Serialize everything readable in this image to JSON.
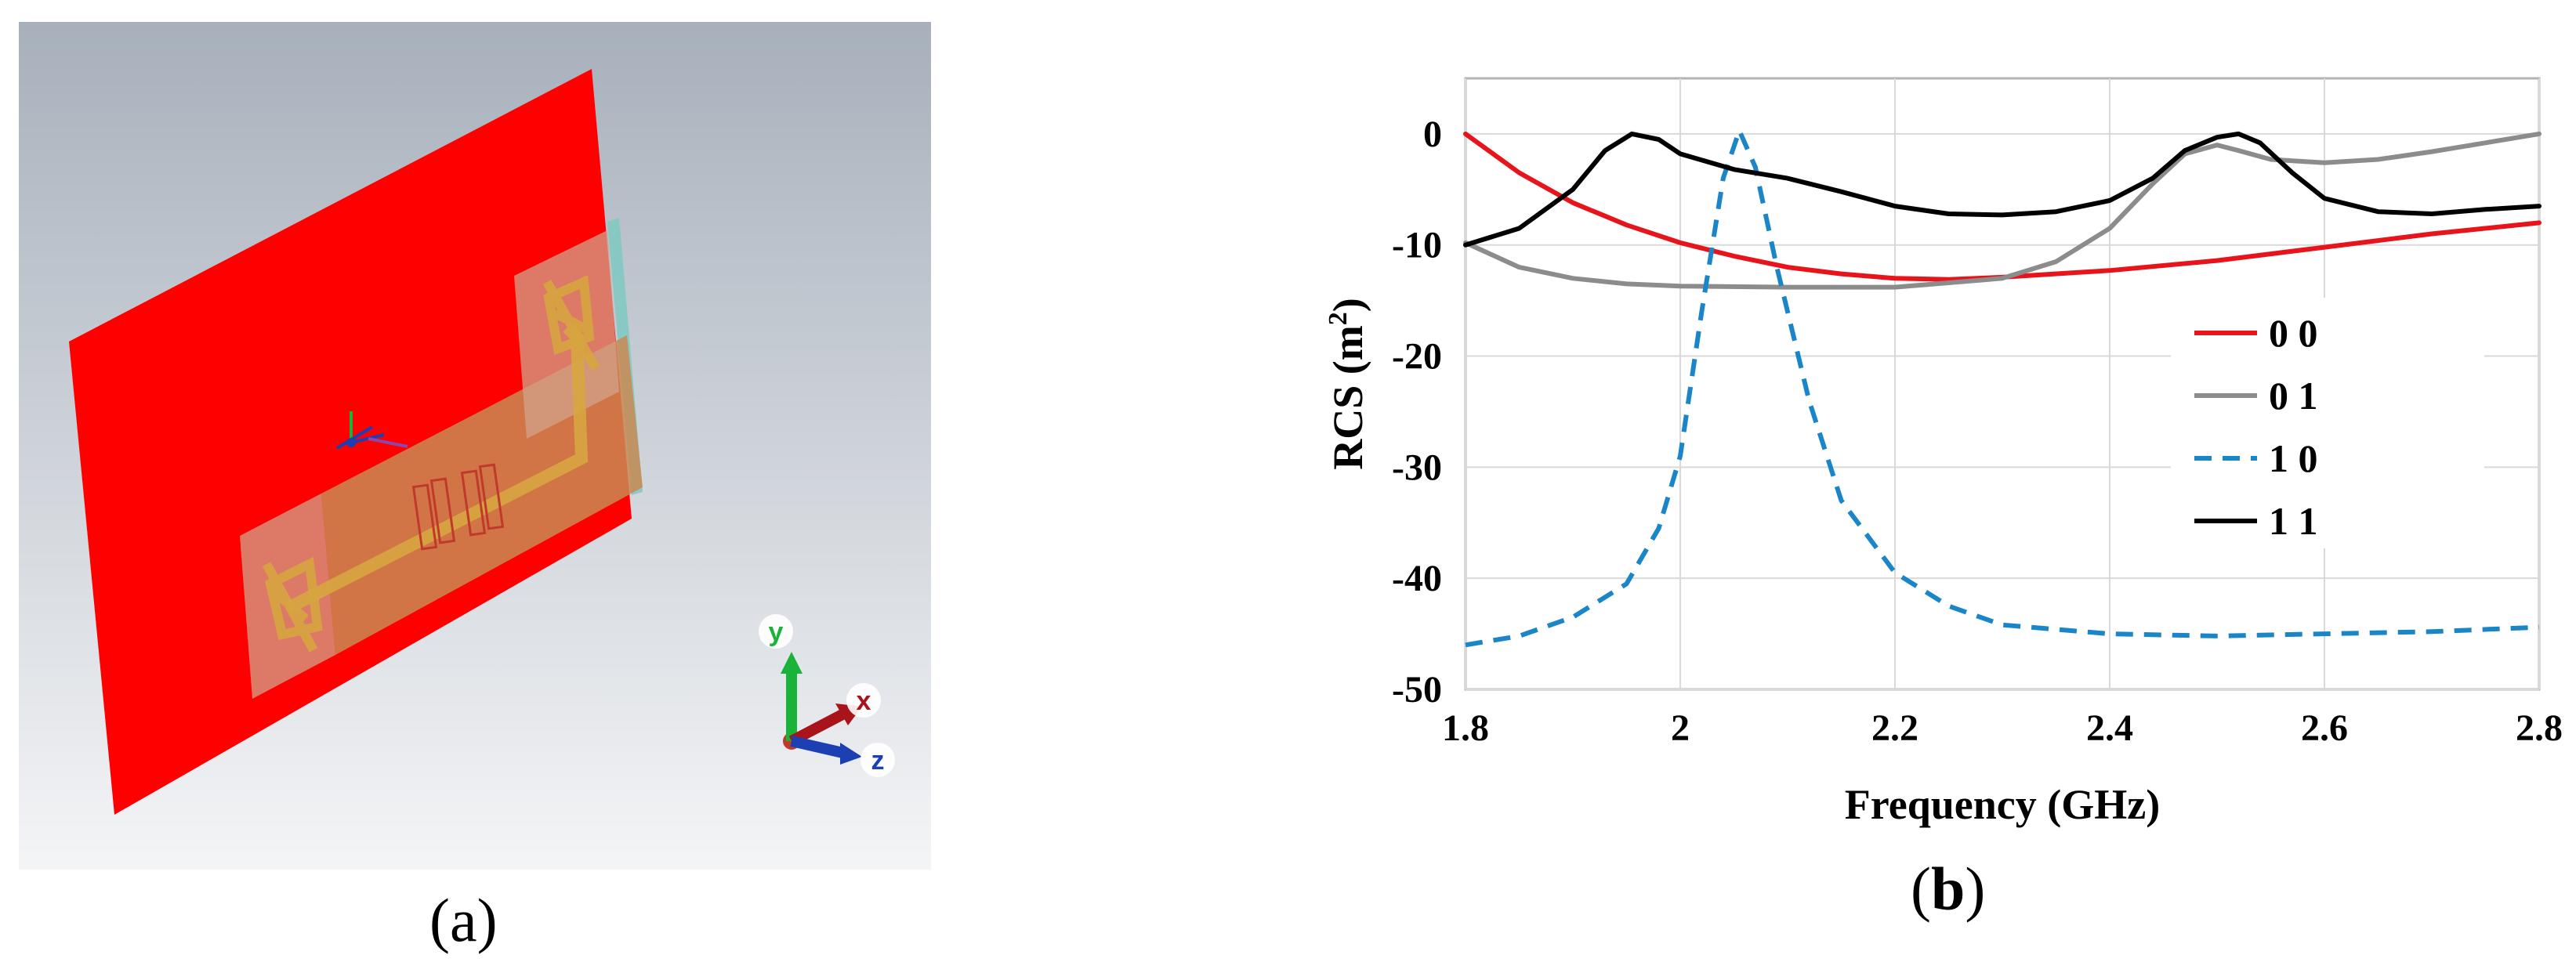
{
  "panel_a": {
    "caption_open": "(",
    "caption_letter": "a",
    "caption_close": ")",
    "axes_labels": {
      "x": "x",
      "y": "y",
      "z": "z"
    },
    "colors": {
      "background_top": "#a7b0bb",
      "background_bottom": "#f4f5f7",
      "ground_plane": "#ff0000",
      "substrate": "#c98a52",
      "feed_line": "#d7a640",
      "edge_strip": "#7fc9c2",
      "x_axis": "#a8141a",
      "y_axis": "#19b339",
      "z_axis": "#1c3fb3"
    }
  },
  "panel_b": {
    "caption_open": "(",
    "caption_letter": "b",
    "caption_close": ")"
  },
  "chart_data": {
    "type": "line",
    "title": "",
    "xlabel": "Frequency (GHz)",
    "ylabel_prefix": "RCS (m",
    "ylabel_sup": "2",
    "ylabel_suffix": ")",
    "xlim": [
      1.8,
      2.8
    ],
    "ylim": [
      -50,
      5
    ],
    "xticks": [
      1.8,
      2.0,
      2.2,
      2.4,
      2.6,
      2.8
    ],
    "xtick_labels": [
      "1.8",
      "2",
      "2.2",
      "2.4",
      "2.6",
      "2.8"
    ],
    "yticks": [
      0,
      -10,
      -20,
      -30,
      -40,
      -50
    ],
    "ytick_labels": [
      "0",
      "-10",
      "-20",
      "-30",
      "-40",
      "-50"
    ],
    "grid": true,
    "legend_position": "right",
    "series": [
      {
        "name": "0 0",
        "color": "#e8141b",
        "dash": "solid",
        "points": [
          [
            1.8,
            0
          ],
          [
            1.85,
            -3.5
          ],
          [
            1.9,
            -6.2
          ],
          [
            1.95,
            -8.2
          ],
          [
            2.0,
            -9.8
          ],
          [
            2.05,
            -11.0
          ],
          [
            2.1,
            -12.0
          ],
          [
            2.15,
            -12.6
          ],
          [
            2.2,
            -13.0
          ],
          [
            2.25,
            -13.1
          ],
          [
            2.3,
            -12.9
          ],
          [
            2.4,
            -12.3
          ],
          [
            2.5,
            -11.4
          ],
          [
            2.6,
            -10.2
          ],
          [
            2.7,
            -9.0
          ],
          [
            2.8,
            -8.0
          ]
        ]
      },
      {
        "name": "0 1",
        "color": "#8c8c8c",
        "dash": "solid",
        "points": [
          [
            1.8,
            -9.8
          ],
          [
            1.85,
            -12.0
          ],
          [
            1.9,
            -13.0
          ],
          [
            1.95,
            -13.5
          ],
          [
            2.0,
            -13.7
          ],
          [
            2.1,
            -13.8
          ],
          [
            2.2,
            -13.8
          ],
          [
            2.3,
            -13.0
          ],
          [
            2.35,
            -11.5
          ],
          [
            2.4,
            -8.5
          ],
          [
            2.44,
            -4.5
          ],
          [
            2.47,
            -1.8
          ],
          [
            2.5,
            -1.0
          ],
          [
            2.52,
            -1.5
          ],
          [
            2.55,
            -2.3
          ],
          [
            2.6,
            -2.6
          ],
          [
            2.65,
            -2.3
          ],
          [
            2.7,
            -1.6
          ],
          [
            2.75,
            -0.8
          ],
          [
            2.8,
            0
          ]
        ]
      },
      {
        "name": "1 0",
        "color": "#1a86c8",
        "dash": "dashed",
        "points": [
          [
            1.8,
            -46
          ],
          [
            1.85,
            -45.2
          ],
          [
            1.9,
            -43.5
          ],
          [
            1.95,
            -40.5
          ],
          [
            1.98,
            -35.5
          ],
          [
            2.0,
            -29.0
          ],
          [
            2.02,
            -16.0
          ],
          [
            2.04,
            -4.0
          ],
          [
            2.055,
            0.3
          ],
          [
            2.07,
            -3.0
          ],
          [
            2.09,
            -12.0
          ],
          [
            2.12,
            -24.0
          ],
          [
            2.15,
            -33.0
          ],
          [
            2.2,
            -39.5
          ],
          [
            2.25,
            -42.5
          ],
          [
            2.3,
            -44.2
          ],
          [
            2.4,
            -45.0
          ],
          [
            2.5,
            -45.2
          ],
          [
            2.6,
            -45.0
          ],
          [
            2.7,
            -44.8
          ],
          [
            2.8,
            -44.4
          ]
        ]
      },
      {
        "name": "1 1",
        "color": "#000000",
        "dash": "solid",
        "points": [
          [
            1.8,
            -10
          ],
          [
            1.85,
            -8.5
          ],
          [
            1.9,
            -5.0
          ],
          [
            1.93,
            -1.5
          ],
          [
            1.955,
            0
          ],
          [
            1.98,
            -0.5
          ],
          [
            2.0,
            -1.8
          ],
          [
            2.05,
            -3.2
          ],
          [
            2.1,
            -4.0
          ],
          [
            2.15,
            -5.2
          ],
          [
            2.2,
            -6.5
          ],
          [
            2.25,
            -7.2
          ],
          [
            2.3,
            -7.3
          ],
          [
            2.35,
            -7.0
          ],
          [
            2.4,
            -6.0
          ],
          [
            2.44,
            -4.0
          ],
          [
            2.47,
            -1.5
          ],
          [
            2.5,
            -0.3
          ],
          [
            2.52,
            0
          ],
          [
            2.54,
            -0.8
          ],
          [
            2.57,
            -3.5
          ],
          [
            2.6,
            -5.8
          ],
          [
            2.65,
            -7.0
          ],
          [
            2.7,
            -7.2
          ],
          [
            2.75,
            -6.8
          ],
          [
            2.8,
            -6.5
          ]
        ]
      }
    ]
  }
}
